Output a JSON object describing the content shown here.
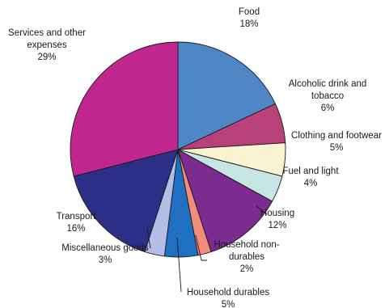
{
  "chart_data": {
    "type": "pie",
    "title": "",
    "start_angle_deg": 0,
    "direction": "clockwise",
    "slices": [
      {
        "label_lines": [
          "Food"
        ],
        "value_label": "18%",
        "value": 18,
        "color": "#4F86C6"
      },
      {
        "label_lines": [
          "Alcoholic drink and",
          "tobacco"
        ],
        "value_label": "6%",
        "value": 6,
        "color": "#B8417A"
      },
      {
        "label_lines": [
          "Clothing and footwear"
        ],
        "value_label": "5%",
        "value": 5,
        "color": "#FAF3D2"
      },
      {
        "label_lines": [
          "Fuel and light"
        ],
        "value_label": "4%",
        "value": 4,
        "color": "#C7E6E3"
      },
      {
        "label_lines": [
          "Housing"
        ],
        "value_label": "12%",
        "value": 12,
        "color": "#7B2C8E"
      },
      {
        "label_lines": [
          "Household non-",
          "durables"
        ],
        "value_label": "2%",
        "value": 2,
        "color": "#F28C7C"
      },
      {
        "label_lines": [
          "Household durables"
        ],
        "value_label": "5%",
        "value": 5,
        "color": "#1F6FC2"
      },
      {
        "label_lines": [
          "Miscellaneous goods"
        ],
        "value_label": "3%",
        "value": 3,
        "color": "#B4BDE3"
      },
      {
        "label_lines": [
          "Transport"
        ],
        "value_label": "16%",
        "value": 16,
        "color": "#2B2F86"
      },
      {
        "label_lines": [
          "Services and other",
          "expenses"
        ],
        "value_label": "29%",
        "value": 29,
        "color": "#C0268E"
      }
    ]
  }
}
